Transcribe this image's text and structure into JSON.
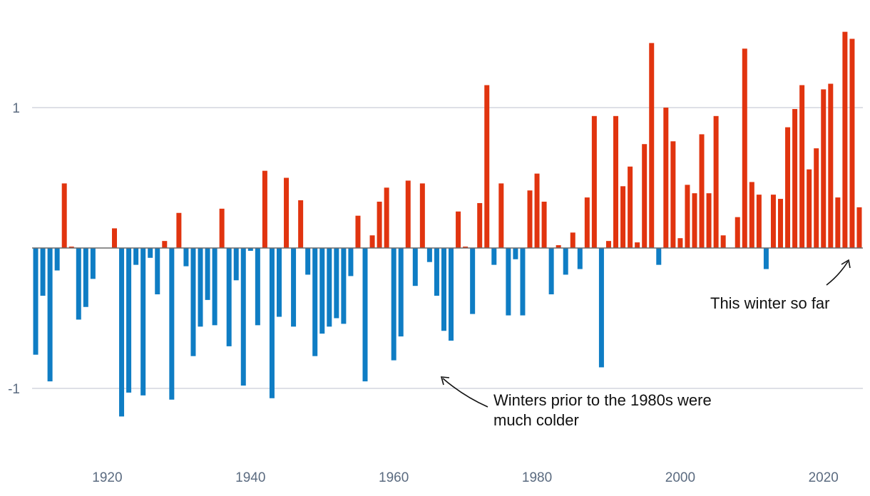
{
  "chart_data": {
    "type": "bar",
    "title": "",
    "xlabel": "",
    "ylabel": "",
    "ylim": [
      -1.35,
      1.6
    ],
    "xlim": [
      1909.5,
      2025.5
    ],
    "y_ticks": [
      -1,
      1
    ],
    "y_tick_labels": [
      "-1",
      "1"
    ],
    "x_ticks": [
      1920,
      1940,
      1960,
      1980,
      2000,
      2020
    ],
    "x_tick_labels": [
      "1920",
      "1940",
      "1960",
      "1980",
      "2000",
      "2020"
    ],
    "grid": true,
    "colors": {
      "positive": "#e1340f",
      "negative": "#0f7dc4",
      "grid": "#c9ced8",
      "zero_line": "#6b6b6b",
      "tick_text": "#5b6b80"
    },
    "x": [
      1910,
      1911,
      1912,
      1913,
      1914,
      1915,
      1916,
      1917,
      1918,
      1919,
      1920,
      1921,
      1922,
      1923,
      1924,
      1925,
      1926,
      1927,
      1928,
      1929,
      1930,
      1931,
      1932,
      1933,
      1934,
      1935,
      1936,
      1937,
      1938,
      1939,
      1940,
      1941,
      1942,
      1943,
      1944,
      1945,
      1946,
      1947,
      1948,
      1949,
      1950,
      1951,
      1952,
      1953,
      1954,
      1955,
      1956,
      1957,
      1958,
      1959,
      1960,
      1961,
      1962,
      1963,
      1964,
      1965,
      1966,
      1967,
      1968,
      1969,
      1970,
      1971,
      1972,
      1973,
      1974,
      1975,
      1976,
      1977,
      1978,
      1979,
      1980,
      1981,
      1982,
      1983,
      1984,
      1985,
      1986,
      1987,
      1988,
      1989,
      1990,
      1991,
      1992,
      1993,
      1994,
      1995,
      1996,
      1997,
      1998,
      1999,
      2000,
      2001,
      2002,
      2003,
      2004,
      2005,
      2006,
      2007,
      2008,
      2009,
      2010,
      2011,
      2012,
      2013,
      2014,
      2015,
      2016,
      2017,
      2018,
      2019,
      2020,
      2021,
      2022,
      2023,
      2024,
      2025
    ],
    "values": [
      -0.76,
      -0.34,
      -0.95,
      -0.16,
      0.46,
      0.01,
      -0.51,
      -0.42,
      -0.22,
      0.0,
      0.0,
      0.14,
      -1.2,
      -1.03,
      -0.12,
      -1.05,
      -0.07,
      -0.33,
      0.05,
      -1.08,
      0.25,
      -0.13,
      -0.77,
      -0.56,
      -0.37,
      -0.55,
      0.28,
      -0.7,
      -0.23,
      -0.98,
      -0.02,
      -0.55,
      0.55,
      -1.07,
      -0.49,
      0.5,
      -0.56,
      0.34,
      -0.19,
      -0.77,
      -0.61,
      -0.56,
      -0.5,
      -0.54,
      -0.2,
      0.23,
      -0.95,
      0.09,
      0.33,
      0.43,
      -0.8,
      -0.63,
      0.48,
      -0.27,
      0.46,
      -0.1,
      -0.34,
      -0.59,
      -0.66,
      0.26,
      0.01,
      -0.47,
      0.32,
      1.16,
      -0.12,
      0.46,
      -0.48,
      -0.08,
      -0.48,
      0.41,
      0.53,
      0.33,
      -0.33,
      0.02,
      -0.19,
      0.11,
      -0.15,
      0.36,
      0.94,
      -0.85,
      0.05,
      0.94,
      0.44,
      0.58,
      0.04,
      0.74,
      1.46,
      -0.12,
      1.0,
      0.76,
      0.07,
      0.45,
      0.39,
      0.81,
      0.39,
      0.94,
      0.09,
      0.0,
      0.22,
      1.42,
      0.47,
      0.38,
      -0.15,
      0.38,
      0.35,
      0.86,
      0.99,
      1.16,
      0.56,
      0.71,
      1.13,
      1.17,
      0.36,
      1.54,
      1.49,
      0.29
    ]
  },
  "annotations": {
    "past_winters": {
      "line1": "Winters prior to the 1980s were",
      "line2": "much colder"
    },
    "current_winter": {
      "text": "This winter so far"
    }
  }
}
